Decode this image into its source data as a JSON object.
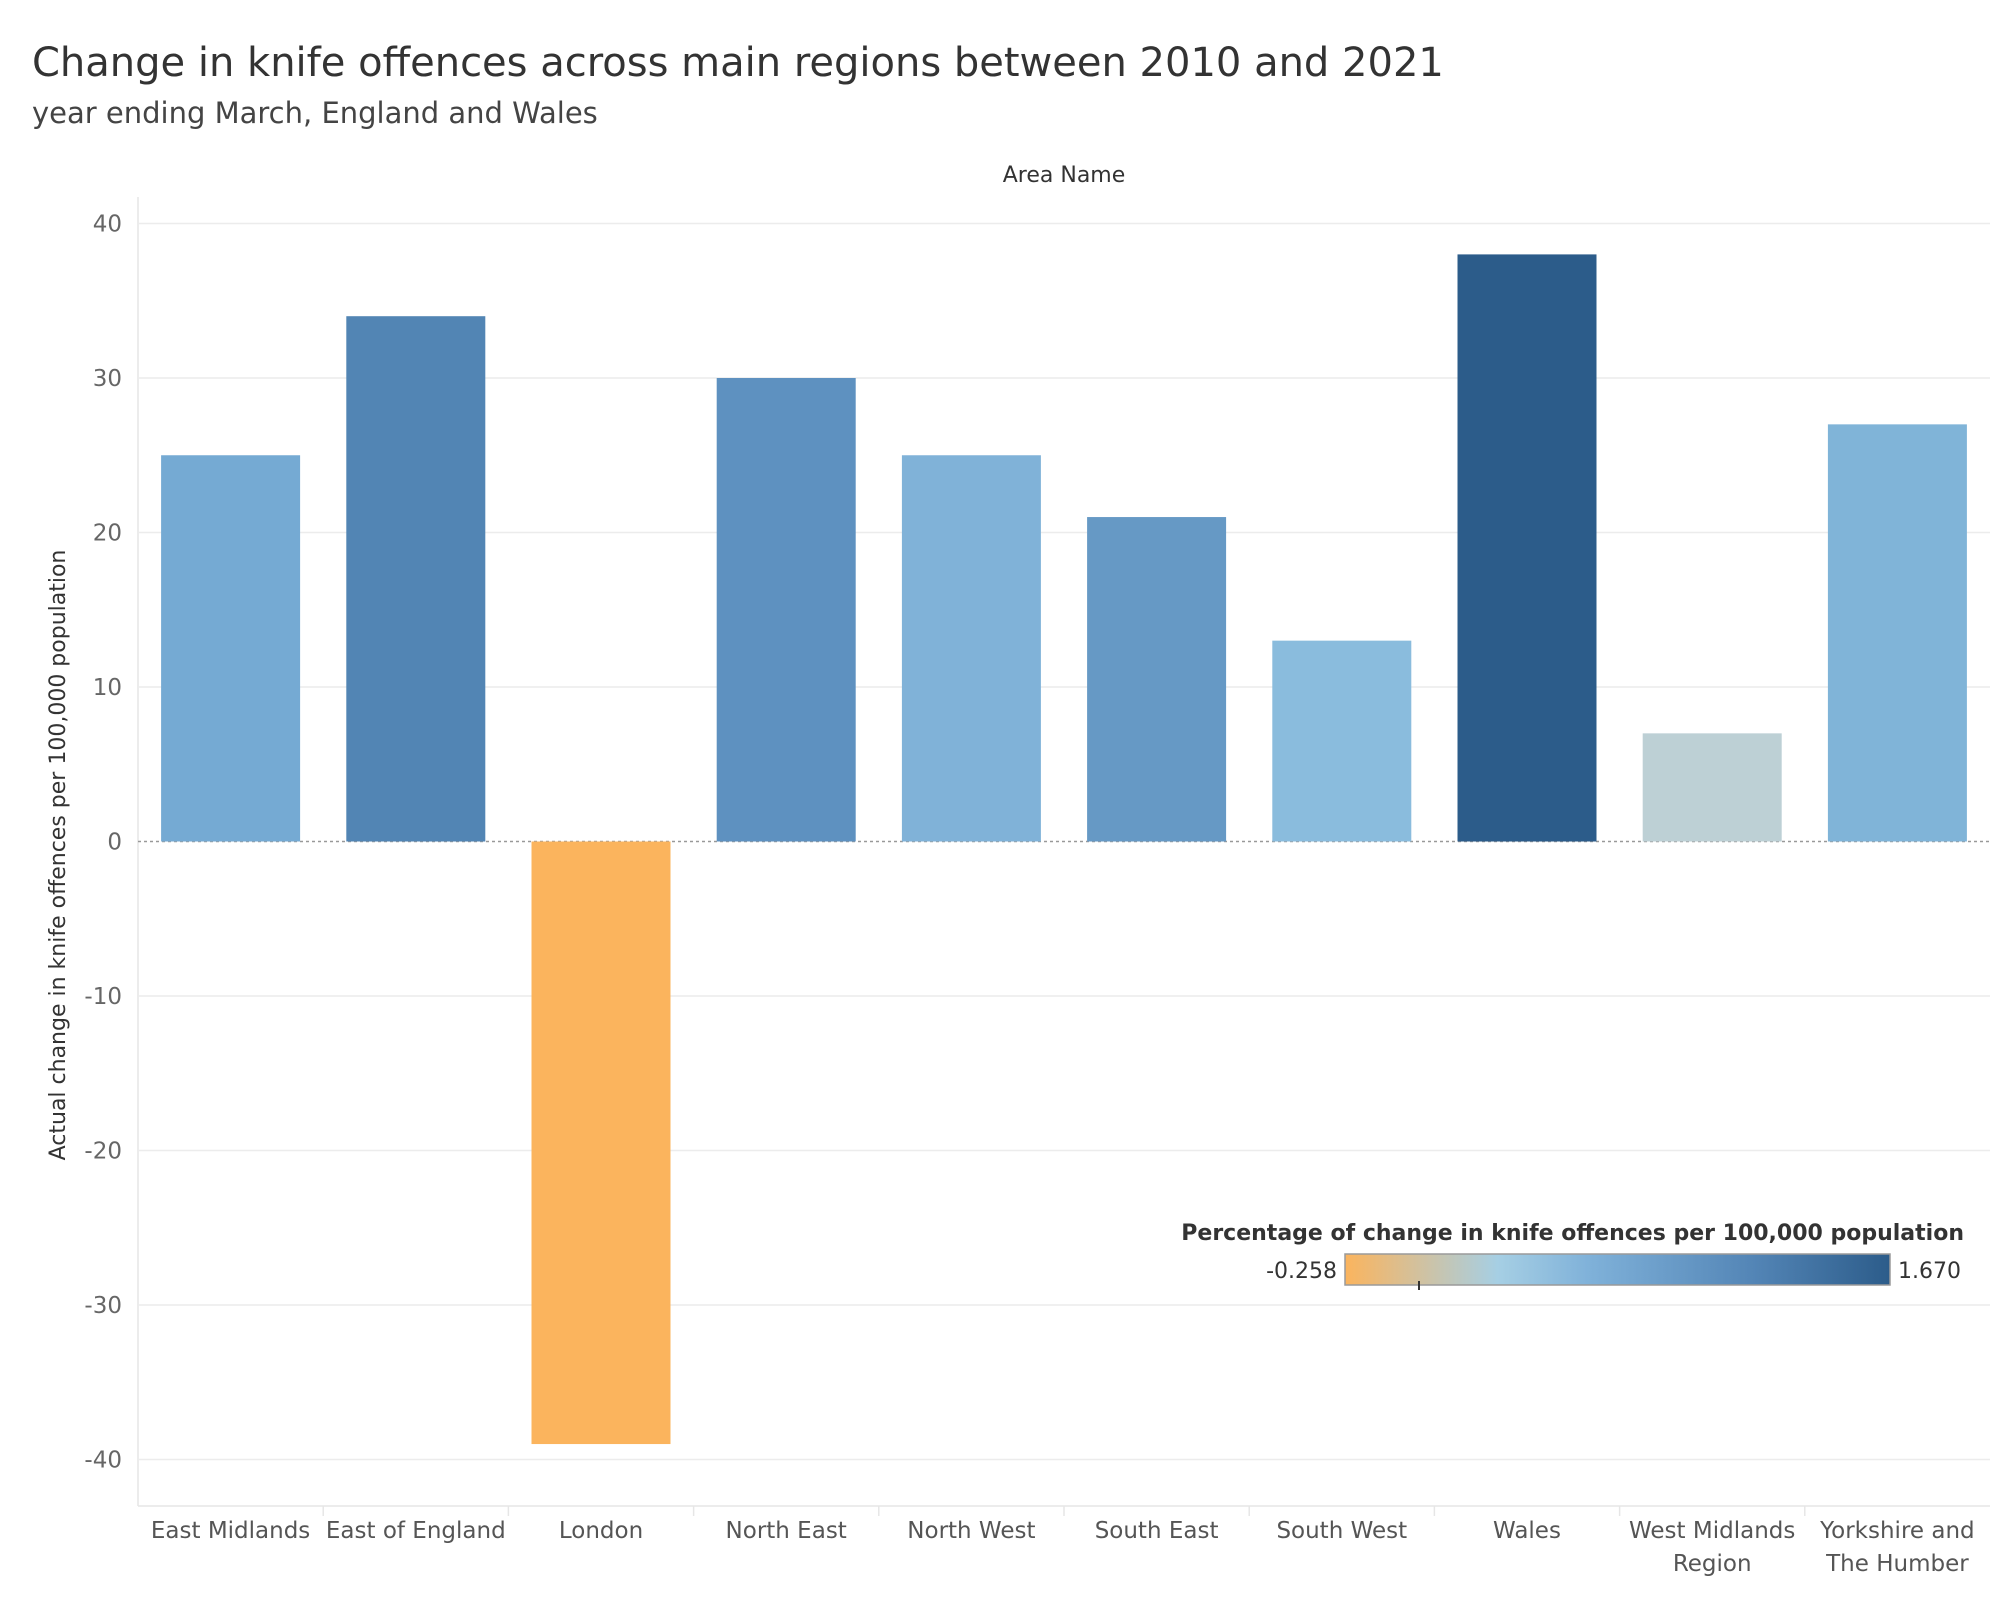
{
  "title": "Change in knife offences across main regions between 2010 and 2021",
  "subtitle": "year ending March, England and Wales",
  "chart_data": {
    "type": "bar",
    "title": "Change in knife offences across main regions between 2010 and 2021",
    "subtitle": "year ending March, England and Wales",
    "xlabel": "Area Name",
    "ylabel": "Actual change in knife offences per 100,000 population",
    "ylim": [
      -42,
      41.5
    ],
    "yticks": [
      40,
      30,
      20,
      10,
      0,
      -10,
      -20,
      -30,
      -40
    ],
    "ytick_labels": [
      "40",
      "30",
      "20",
      "10",
      "0",
      "-10",
      "-20",
      "-30",
      "-40"
    ],
    "categories": [
      "East Midlands",
      "East of England",
      "London",
      "North East",
      "North West",
      "South East",
      "South West",
      "Wales",
      "West Midlands Region",
      "Yorkshire and The Humber"
    ],
    "category_lines": [
      [
        "East Midlands"
      ],
      [
        "East of England"
      ],
      [
        "London"
      ],
      [
        "North East"
      ],
      [
        "North West"
      ],
      [
        "South East"
      ],
      [
        "South West"
      ],
      [
        "Wales"
      ],
      [
        "West Midlands",
        "Region"
      ],
      [
        "Yorkshire and",
        "The Humber"
      ]
    ],
    "values": [
      25,
      34,
      -39,
      30,
      25,
      21,
      13,
      38,
      7,
      27
    ],
    "colors": [
      "#75aad3",
      "#5285b4",
      "#fbb45d",
      "#5e91c0",
      "#80b2d8",
      "#6699c5",
      "#8abcdd",
      "#2c5c8a",
      "#bdd0d5",
      "#80b4d8"
    ],
    "legend": {
      "title": "Percentage of change in knife offences per 100,000 population",
      "min_label": "-0.258",
      "max_label": "1.670",
      "gradient": [
        "#fbb45d",
        "#a6cfe4",
        "#7fb1d9",
        "#5385b6",
        "#2c5c8a"
      ],
      "position": "bottom-right"
    },
    "grid": true
  }
}
